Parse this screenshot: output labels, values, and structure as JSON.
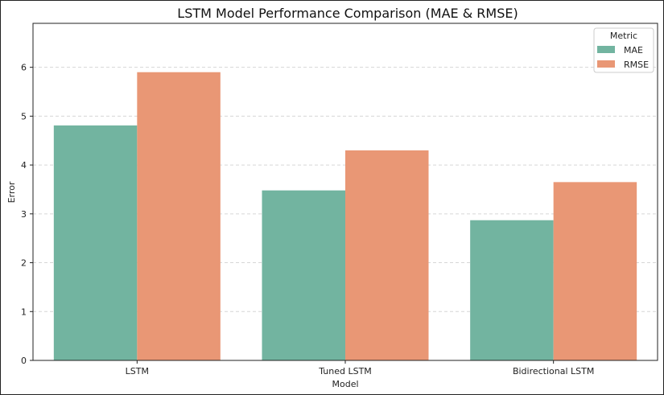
{
  "chart_data": {
    "type": "bar",
    "title": "LSTM Model Performance Comparison (MAE & RMSE)",
    "xlabel": "Model",
    "ylabel": "Error",
    "categories": [
      "LSTM",
      "Tuned LSTM",
      "Bidirectional LSTM"
    ],
    "series": [
      {
        "name": "MAE",
        "values": [
          4.81,
          3.48,
          2.87
        ],
        "color": "#72b4a0"
      },
      {
        "name": "RMSE",
        "values": [
          5.9,
          4.3,
          3.65
        ],
        "color": "#e99775"
      }
    ],
    "ylim": [
      0,
      6.9
    ],
    "yticks": [
      0,
      1,
      2,
      3,
      4,
      5,
      6
    ],
    "grid": "horizontal-dashed",
    "legend": {
      "title": "Metric",
      "placement": "top-right"
    }
  }
}
